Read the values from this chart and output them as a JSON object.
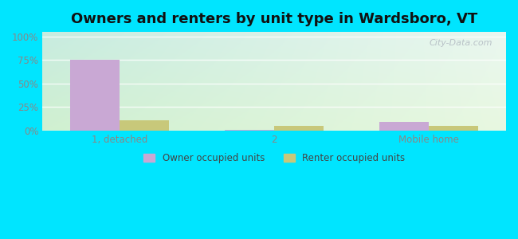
{
  "title": "Owners and renters by unit type in Wardsboro, VT",
  "categories": [
    "1, detached",
    "2",
    "Mobile home"
  ],
  "owner_values": [
    75,
    1,
    9
  ],
  "renter_values": [
    11,
    5,
    5
  ],
  "owner_color": "#c9a8d4",
  "renter_color": "#c8c87a",
  "yticks": [
    0,
    25,
    50,
    75,
    100
  ],
  "ytick_labels": [
    "0%",
    "25%",
    "50%",
    "75%",
    "100%"
  ],
  "ylim": [
    0,
    105
  ],
  "outer_bg": "#00e5ff",
  "grad_top_left": "#c5ede0",
  "grad_top_right": "#e8f5f0",
  "grad_bottom_left": "#d8f0d0",
  "grad_bottom_right": "#edfaed",
  "title_fontsize": 13,
  "legend_owner": "Owner occupied units",
  "legend_renter": "Renter occupied units",
  "bar_width": 0.32,
  "watermark": "City-Data.com",
  "grid_color": "#dddddd",
  "tick_color": "#888888"
}
